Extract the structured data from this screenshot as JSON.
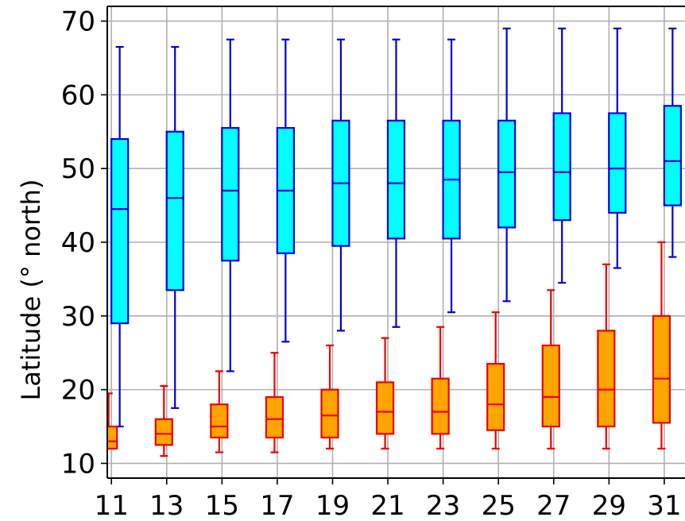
{
  "chart_data": {
    "type": "box",
    "title": "",
    "xlabel": "",
    "ylabel": "Latitude (° north)",
    "xlim": [
      10.85,
      31.75
    ],
    "ylim": [
      8,
      72
    ],
    "x_ticks": [
      11,
      13,
      15,
      17,
      19,
      21,
      23,
      25,
      27,
      29,
      31
    ],
    "y_ticks": [
      10,
      20,
      30,
      40,
      50,
      60,
      70
    ],
    "grid": true,
    "legend": "none",
    "series": [
      {
        "fill": "#00ffff",
        "line_color": "#0000dd",
        "boxes": [
          {
            "x": 11.3,
            "whisker_low": 15.0,
            "q1": 29.0,
            "median": 44.5,
            "q3": 54.0,
            "whisker_high": 66.5
          },
          {
            "x": 13.3,
            "whisker_low": 17.5,
            "q1": 33.5,
            "median": 46.0,
            "q3": 55.0,
            "whisker_high": 66.5
          },
          {
            "x": 15.3,
            "whisker_low": 22.5,
            "q1": 37.5,
            "median": 47.0,
            "q3": 55.5,
            "whisker_high": 67.5
          },
          {
            "x": 17.3,
            "whisker_low": 26.5,
            "q1": 38.5,
            "median": 47.0,
            "q3": 55.5,
            "whisker_high": 67.5
          },
          {
            "x": 19.3,
            "whisker_low": 28.0,
            "q1": 39.5,
            "median": 48.0,
            "q3": 56.5,
            "whisker_high": 67.5
          },
          {
            "x": 21.3,
            "whisker_low": 28.5,
            "q1": 40.5,
            "median": 48.0,
            "q3": 56.5,
            "whisker_high": 67.5
          },
          {
            "x": 23.3,
            "whisker_low": 30.5,
            "q1": 40.5,
            "median": 48.5,
            "q3": 56.5,
            "whisker_high": 67.5
          },
          {
            "x": 25.3,
            "whisker_low": 32.0,
            "q1": 42.0,
            "median": 49.5,
            "q3": 56.5,
            "whisker_high": 69.0
          },
          {
            "x": 27.3,
            "whisker_low": 34.5,
            "q1": 43.0,
            "median": 49.5,
            "q3": 57.5,
            "whisker_high": 69.0
          },
          {
            "x": 29.3,
            "whisker_low": 36.5,
            "q1": 44.0,
            "median": 50.0,
            "q3": 57.5,
            "whisker_high": 69.0
          },
          {
            "x": 31.3,
            "whisker_low": 38.0,
            "q1": 45.0,
            "median": 51.0,
            "q3": 58.5,
            "whisker_high": 69.0
          }
        ]
      },
      {
        "fill": "#ffa500",
        "line_color": "#ee0000",
        "boxes": [
          {
            "x": 10.9,
            "whisker_low": 12.0,
            "q1": 12.0,
            "median": 13.0,
            "q3": 15.0,
            "whisker_high": 19.5
          },
          {
            "x": 12.9,
            "whisker_low": 11.0,
            "q1": 12.5,
            "median": 14.0,
            "q3": 16.0,
            "whisker_high": 20.5
          },
          {
            "x": 14.9,
            "whisker_low": 11.5,
            "q1": 13.5,
            "median": 15.0,
            "q3": 18.0,
            "whisker_high": 22.5
          },
          {
            "x": 16.9,
            "whisker_low": 11.5,
            "q1": 13.5,
            "median": 16.0,
            "q3": 19.0,
            "whisker_high": 25.0
          },
          {
            "x": 18.9,
            "whisker_low": 12.0,
            "q1": 13.5,
            "median": 16.5,
            "q3": 20.0,
            "whisker_high": 26.0
          },
          {
            "x": 20.9,
            "whisker_low": 12.0,
            "q1": 14.0,
            "median": 17.0,
            "q3": 21.0,
            "whisker_high": 27.0
          },
          {
            "x": 22.9,
            "whisker_low": 12.0,
            "q1": 14.0,
            "median": 17.0,
            "q3": 21.5,
            "whisker_high": 28.5
          },
          {
            "x": 24.9,
            "whisker_low": 12.0,
            "q1": 14.5,
            "median": 18.0,
            "q3": 23.5,
            "whisker_high": 30.5
          },
          {
            "x": 26.9,
            "whisker_low": 12.0,
            "q1": 15.0,
            "median": 19.0,
            "q3": 26.0,
            "whisker_high": 33.5
          },
          {
            "x": 28.9,
            "whisker_low": 12.0,
            "q1": 15.0,
            "median": 20.0,
            "q3": 28.0,
            "whisker_high": 37.0
          },
          {
            "x": 30.9,
            "whisker_low": 12.0,
            "q1": 15.5,
            "median": 21.5,
            "q3": 30.0,
            "whisker_high": 40.0
          }
        ]
      }
    ]
  }
}
